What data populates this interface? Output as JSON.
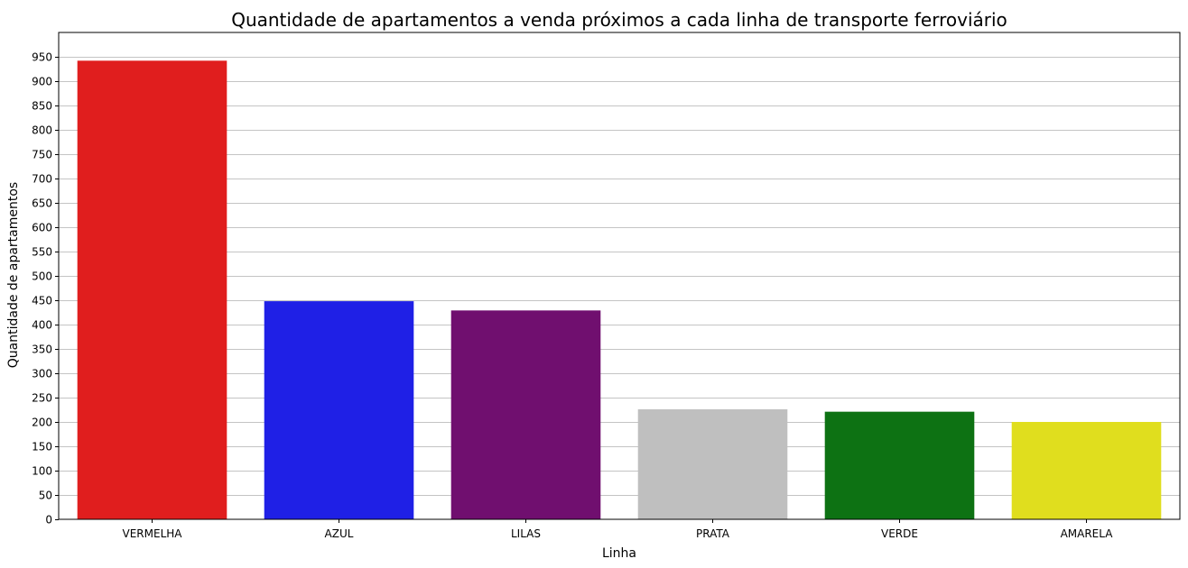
{
  "chart_data": {
    "type": "bar",
    "title": "Quantidade de apartamentos a venda próximos a cada linha de transporte ferroviário",
    "xlabel": "Linha",
    "ylabel": "Quantidade de apartamentos",
    "categories": [
      "VERMELHA",
      "AZUL",
      "LILAS",
      "PRATA",
      "VERDE",
      "AMARELA"
    ],
    "values": [
      942,
      448,
      429,
      226,
      221,
      200
    ],
    "colors": [
      "#e01e1e",
      "#1f20e6",
      "#700f6f",
      "#bfbfbf",
      "#0d7213",
      "#e0de1e"
    ],
    "ylim": [
      0,
      1000
    ],
    "yticks": [
      0,
      50,
      100,
      150,
      200,
      250,
      300,
      350,
      400,
      450,
      500,
      550,
      600,
      650,
      700,
      750,
      800,
      850,
      900,
      950
    ],
    "grid": "horizontal",
    "legend": "none"
  }
}
